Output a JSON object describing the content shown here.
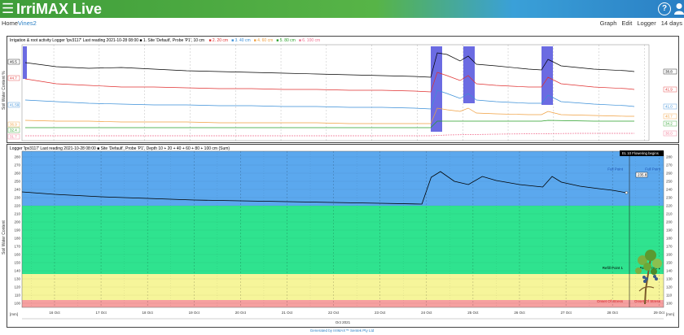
{
  "app": {
    "brand": "IrriMAX Live",
    "help_glyph": "?"
  },
  "nav": {
    "home": "Home",
    "crumb": "Vines2",
    "menu": [
      "Graph",
      "Edit",
      "Logger",
      "14 days"
    ]
  },
  "top_chart": {
    "header_text": "Irrigation & root activity   Logger 'lpv3117'   Last reading 2021-10-28 08:00  ■ 1. Site 'Default', Probe 'P1', 10 cm",
    "legend": [
      {
        "label": "2. 20 cm",
        "color": "#e03030"
      },
      {
        "label": "3. 40 cm",
        "color": "#3a8fd8"
      },
      {
        "label": "4. 60 cm",
        "color": "#f0a040"
      },
      {
        "label": "5. 80 cm",
        "color": "#2aa02a"
      },
      {
        "label": "6. 100 cm",
        "color": "#f07090"
      }
    ],
    "ylabel": "Soil Water Content %",
    "left_tags": [
      "46.5",
      "44.7",
      "41.59",
      "36.9",
      "32.4",
      "31.7"
    ],
    "right_tags": [
      "38.8",
      "41.9",
      "41.0",
      "40.7",
      "34.2",
      "30.0"
    ]
  },
  "bottom_chart": {
    "header_text": "Logger 'lpv3117'   Last reading 2021-10-28 08:00  ■ Site 'Default', Probe 'P1', Depth 10 + 20 + 40 + 60 + 80 + 100 cm (Sum)",
    "callout": "EL 10 Flowering begins",
    "ylabel": "Soil Water Content",
    "end_value": "235.8",
    "refill_label": "Refill Point 1",
    "refill_label_right": "Refill Point 1",
    "full_label": "Full Point",
    "full_label_right": "Full Point",
    "onset_label": "Onset Of Stress",
    "onset_label_right": "Onset Of Stress",
    "unit_left": "[mm]",
    "unit_right": "[mm]",
    "month_label": "Oct 2021"
  },
  "chart_data": {
    "type": "line",
    "title": "",
    "x_labels": [
      "16 Oct",
      "17 Oct",
      "18 Oct",
      "19 Oct",
      "20 Oct",
      "21 Oct",
      "22 Oct",
      "23 Oct",
      "24 Oct",
      "25 Oct",
      "26 Oct",
      "27 Oct",
      "28 Oct",
      "29 Oct"
    ],
    "y_ticks": [
      100,
      110,
      120,
      130,
      140,
      150,
      160,
      170,
      180,
      190,
      200,
      210,
      220,
      230,
      240,
      250,
      260,
      270,
      280
    ],
    "ylim": [
      95,
      287
    ],
    "zones": [
      {
        "name": "full",
        "from": 220,
        "to": 287,
        "color": "#5ba8ee"
      },
      {
        "name": "good",
        "from": 136,
        "to": 220,
        "color": "#2fe38f"
      },
      {
        "name": "refill",
        "from": 104,
        "to": 136,
        "color": "#f6f59a"
      },
      {
        "name": "stress",
        "from": 95,
        "to": 104,
        "color": "#f6a0a0"
      }
    ],
    "series": [
      {
        "name": "Sum",
        "color": "#000000",
        "x": [
          15.3,
          16,
          17,
          18,
          19,
          20,
          21,
          22,
          23,
          23.9,
          24.1,
          24.3,
          24.6,
          24.9,
          25.2,
          25.5,
          26,
          26.5,
          26.7,
          26.9,
          27.3,
          27.7,
          28,
          28.3
        ],
        "y": [
          237,
          234,
          231,
          229,
          227,
          226,
          225,
          224,
          223,
          222,
          255,
          262,
          250,
          246,
          256,
          251,
          246,
          243,
          256,
          249,
          244,
          241,
          239,
          236
        ]
      }
    ],
    "sum_end_value": 235.8
  }
}
